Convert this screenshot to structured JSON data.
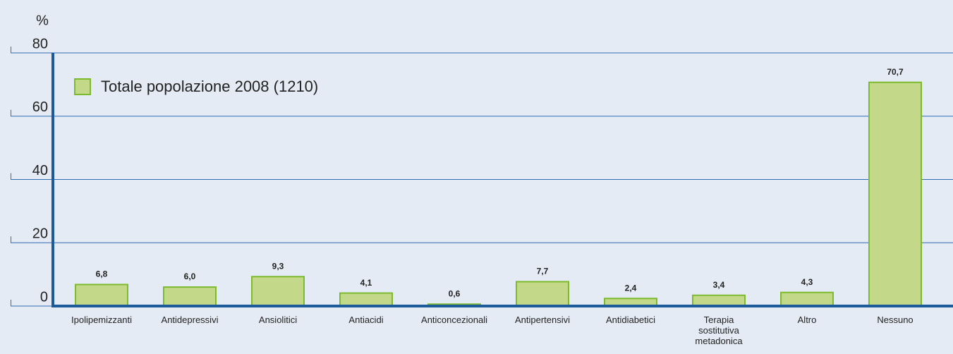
{
  "chart_data": {
    "type": "bar",
    "y_axis_label": "%",
    "categories": [
      "Ipolipemizzanti",
      "Antidepressivi",
      "Ansiolitici",
      "Antiacidi",
      "Anticoncezionali",
      "Antipertensivi",
      "Antidiabetici",
      "Terapia sostitutiva metadonica",
      "Altro",
      "Nessuno"
    ],
    "series": [
      {
        "name": "Totale popolazione 2008 (1210)",
        "color": "#c4d88a",
        "values": [
          6.8,
          6.0,
          9.3,
          4.1,
          0.6,
          7.7,
          2.4,
          3.4,
          4.3,
          70.7
        ],
        "value_labels": [
          "6,8",
          "6,0",
          "9,3",
          "4,1",
          "0,6",
          "7,7",
          "2,4",
          "3,4",
          "4,3",
          "70,7"
        ]
      }
    ],
    "ylim": [
      0,
      80
    ],
    "yticks": [
      0,
      20,
      40,
      60,
      80
    ],
    "grid": true,
    "legend": "top-left"
  }
}
